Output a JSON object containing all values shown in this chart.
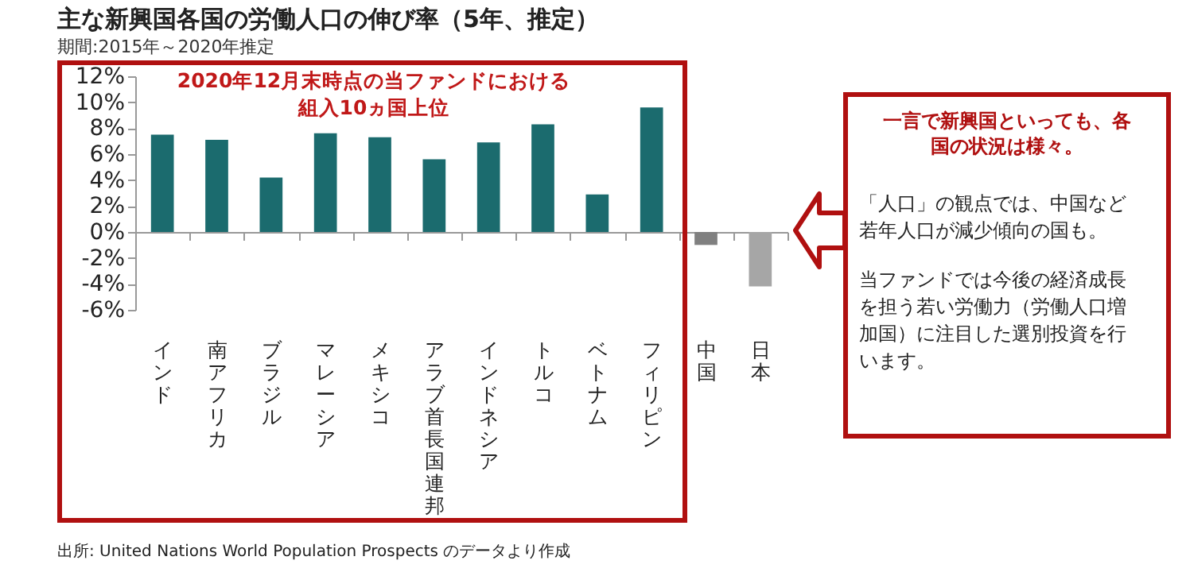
{
  "chart_data": {
    "type": "bar",
    "title": "主な新興国各国の労働人口の伸び率（5年、推定）",
    "subtitle": "期間:2015年～2020年推定",
    "categories": [
      "インド",
      "南アフリカ",
      "ブラジル",
      "マレーシア",
      "メキシコ",
      "アラブ首長国連邦",
      "インドネシア",
      "トルコ",
      "ベトナム",
      "フィリピン",
      "中国",
      "日本"
    ],
    "values": [
      7.5,
      7.1,
      4.2,
      7.6,
      7.3,
      5.6,
      6.9,
      8.3,
      2.9,
      9.6,
      -1.0,
      -4.2
    ],
    "colors": [
      "#1b6b6e",
      "#1b6b6e",
      "#1b6b6e",
      "#1b6b6e",
      "#1b6b6e",
      "#1b6b6e",
      "#1b6b6e",
      "#1b6b6e",
      "#1b6b6e",
      "#1b6b6e",
      "#808080",
      "#a6a6a6"
    ],
    "ylim": [
      -6,
      12
    ],
    "yticks": [
      {
        "value": -6,
        "label": "-6%"
      },
      {
        "value": -4,
        "label": "-4%"
      },
      {
        "value": -2,
        "label": "-2%"
      },
      {
        "value": 0,
        "label": "0%"
      },
      {
        "value": 2,
        "label": "2%"
      },
      {
        "value": 4,
        "label": "4%"
      },
      {
        "value": 6,
        "label": "6%"
      },
      {
        "value": 8,
        "label": "8%"
      },
      {
        "value": 10,
        "label": "10%"
      },
      {
        "value": 12,
        "label": "12%"
      }
    ],
    "legend": false,
    "annotations": [
      "2020年12月末時点の当ファンドにおける組入10ヵ国上位",
      "一言で新興国といっても、各国の状況は様々。",
      "「人口」の観点では、中国など若年人口が減少傾向の国も。",
      "当ファンドでは今後の経済成長を担う若い労働力（労働人口増加国）に注目した選別投資を行います。",
      "出所: United Nations World Population Prospects のデータより作成"
    ]
  }
}
